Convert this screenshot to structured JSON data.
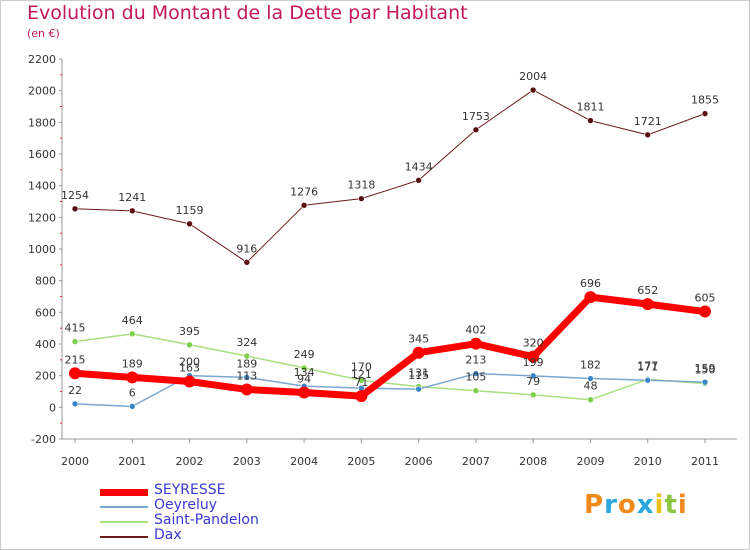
{
  "title": "Evolution du Montant de la Dette par Habitant",
  "subtitle": "(en €)",
  "logo": {
    "text": "Proxiti",
    "letters": [
      "P",
      "r",
      "o",
      "x",
      "i",
      "t",
      "i"
    ],
    "colors": [
      "#f08a1c",
      "#2aa7df",
      "#f08a1c",
      "#2aa7df",
      "#e8c21a",
      "#8cc63f",
      "#f08a1c"
    ]
  },
  "chart_data": {
    "type": "line",
    "categories": [
      "2000",
      "2001",
      "2002",
      "2003",
      "2004",
      "2005",
      "2006",
      "2007",
      "2008",
      "2009",
      "2010",
      "2011"
    ],
    "ylim": [
      -200,
      2200
    ],
    "yticks": [
      -200,
      0,
      200,
      400,
      600,
      800,
      1000,
      1200,
      1400,
      1600,
      1800,
      2000,
      2200
    ],
    "grid": false,
    "legend_position": "bottom-left",
    "series": [
      {
        "name": "Dax",
        "color": "#6b1a1a",
        "line_width": 1,
        "marker_color": "#5a1010",
        "values": [
          1254,
          1241,
          1159,
          916,
          1276,
          1318,
          1434,
          1753,
          2004,
          1811,
          1721,
          1855
        ]
      },
      {
        "name": "Saint-Pandelon",
        "color": "#a8e080",
        "line_width": 1.5,
        "marker_color": "#7bd04a",
        "values": [
          415,
          464,
          395,
          324,
          249,
          170,
          131,
          105,
          79,
          48,
          177,
          150
        ]
      },
      {
        "name": "Oeyreluy",
        "color": "#7ba7cf",
        "line_width": 1.5,
        "marker_color": "#3a86c8",
        "values": [
          22,
          6,
          200,
          189,
          134,
          121,
          115,
          213,
          199,
          182,
          171,
          159
        ]
      },
      {
        "name": "SEYRESSE",
        "color": "#ff0000",
        "line_width": 7,
        "marker_color": "#ff0000",
        "values": [
          215,
          189,
          163,
          113,
          94,
          71,
          345,
          402,
          320,
          696,
          652,
          605
        ]
      }
    ],
    "label_lists": {
      "Dax": [
        "1254",
        "1241",
        "1159",
        "916",
        "1276",
        "1318",
        "1434",
        "1753",
        "2004",
        "1811",
        "1721",
        "1855"
      ],
      "Saint-Pandelon": [
        "415",
        "464",
        "395",
        "324",
        "249",
        "170",
        "131",
        "105",
        "79",
        "48",
        "177",
        "150"
      ],
      "Oeyreluy": [
        "22",
        "6",
        "200",
        "189",
        "134",
        "121",
        "115",
        "213",
        "199",
        "182",
        "171",
        "159"
      ],
      "SEYRESSE": [
        "215",
        "189",
        "163",
        "113",
        "94",
        "71",
        "345",
        "402",
        "320",
        "696",
        "652",
        "605"
      ]
    },
    "legend_order": [
      "SEYRESSE",
      "Oeyreluy",
      "Saint-Pandelon",
      "Dax"
    ]
  }
}
